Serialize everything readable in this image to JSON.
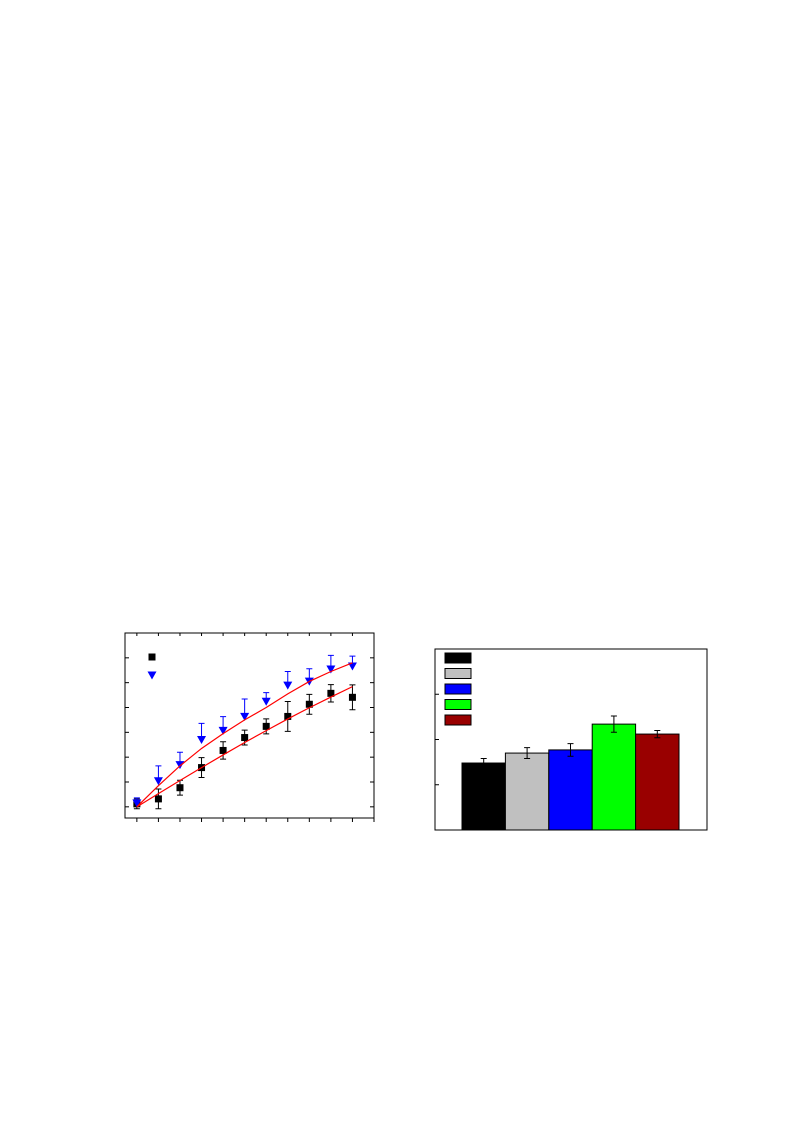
{
  "chart_data": [
    {
      "type": "scatter",
      "x": [
        0,
        1,
        2,
        3,
        4,
        5,
        6,
        7,
        8,
        9,
        10
      ],
      "xlim": [
        -0.55,
        11
      ],
      "xticks": [
        0,
        1,
        2,
        3,
        4,
        5,
        6,
        7,
        8,
        9,
        10,
        11
      ],
      "ylim": [
        -0.45,
        7
      ],
      "yticks": [
        0,
        1,
        2,
        3,
        4,
        5,
        6,
        7
      ],
      "series": [
        {
          "color": "#000000",
          "marker": "square",
          "error_bars": "both",
          "values": [
            0.12,
            0.32,
            0.77,
            1.58,
            2.27,
            2.79,
            3.24,
            3.64,
            4.13,
            4.57,
            4.41
          ],
          "errors": [
            0.2,
            0.4,
            0.3,
            0.4,
            0.35,
            0.3,
            0.3,
            0.6,
            0.4,
            0.35,
            0.5
          ]
        },
        {
          "color": "#0000ff",
          "marker": "triangle",
          "error_bars": "up",
          "values": [
            0.16,
            1.05,
            1.7,
            2.71,
            3.08,
            3.64,
            4.25,
            4.9,
            5.06,
            5.55,
            5.67
          ],
          "errors": [
            0.2,
            0.6,
            0.5,
            0.65,
            0.55,
            0.7,
            0.35,
            0.55,
            0.5,
            0.55,
            0.4
          ]
        },
        {
          "color": "#ff0000",
          "marker": "line",
          "values": [
            0,
            0.53,
            1.06,
            1.58,
            2.09,
            2.59,
            3.07,
            3.54,
            3.99,
            4.42,
            4.84
          ]
        },
        {
          "color": "#ff0000",
          "marker": "line",
          "values": [
            0,
            0.85,
            1.65,
            2.35,
            2.95,
            3.5,
            4.0,
            4.55,
            5.05,
            5.45,
            5.8
          ]
        }
      ]
    },
    {
      "type": "bar",
      "categories": [
        null
      ],
      "ylim": [
        0,
        4
      ],
      "yticks": [
        0,
        1,
        2,
        3,
        4
      ],
      "series": [
        {
          "color": "#000000",
          "values": [
            1.48
          ],
          "errors": [
            0.1
          ]
        },
        {
          "color": "#c0c0c0",
          "values": [
            1.7
          ],
          "errors": [
            0.12
          ]
        },
        {
          "color": "#0000ff",
          "values": [
            1.77
          ],
          "errors": [
            0.14
          ]
        },
        {
          "color": "#00ff00",
          "values": [
            2.34
          ],
          "errors": [
            0.18
          ]
        },
        {
          "color": "#990000",
          "values": [
            2.12
          ],
          "errors": [
            0.08
          ]
        }
      ]
    }
  ]
}
